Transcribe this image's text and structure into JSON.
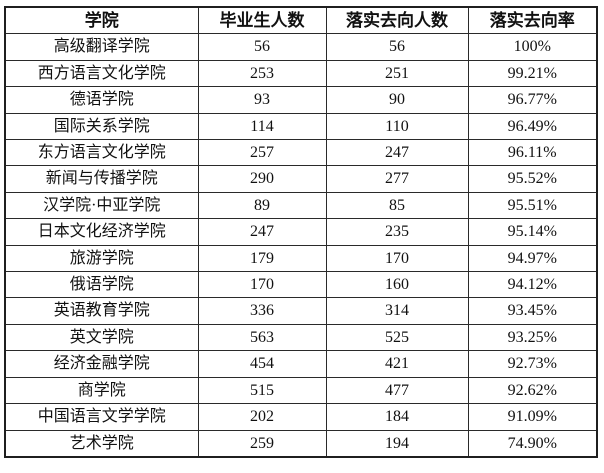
{
  "chart_data": {
    "type": "table",
    "title": "",
    "columns": [
      "学院",
      "毕业生人数",
      "落实去向人数",
      "落实去向率"
    ],
    "rows": [
      [
        "高级翻译学院",
        "56",
        "56",
        "100%"
      ],
      [
        "西方语言文化学院",
        "253",
        "251",
        "99.21%"
      ],
      [
        "德语学院",
        "93",
        "90",
        "96.77%"
      ],
      [
        "国际关系学院",
        "114",
        "110",
        "96.49%"
      ],
      [
        "东方语言文化学院",
        "257",
        "247",
        "96.11%"
      ],
      [
        "新闻与传播学院",
        "290",
        "277",
        "95.52%"
      ],
      [
        "汉学院·中亚学院",
        "89",
        "85",
        "95.51%"
      ],
      [
        "日本文化经济学院",
        "247",
        "235",
        "95.14%"
      ],
      [
        "旅游学院",
        "179",
        "170",
        "94.97%"
      ],
      [
        "俄语学院",
        "170",
        "160",
        "94.12%"
      ],
      [
        "英语教育学院",
        "336",
        "314",
        "93.45%"
      ],
      [
        "英文学院",
        "563",
        "525",
        "93.25%"
      ],
      [
        "经济金融学院",
        "454",
        "421",
        "92.73%"
      ],
      [
        "商学院",
        "515",
        "477",
        "92.62%"
      ],
      [
        "中国语言文学学院",
        "202",
        "184",
        "91.09%"
      ],
      [
        "艺术学院",
        "259",
        "194",
        "74.90%"
      ]
    ],
    "layout": {
      "grid": true,
      "header_bold": true,
      "text_align": "center"
    }
  },
  "colors": {
    "border": "#1f1f1f",
    "text": "#111111",
    "background": "#ffffff"
  }
}
